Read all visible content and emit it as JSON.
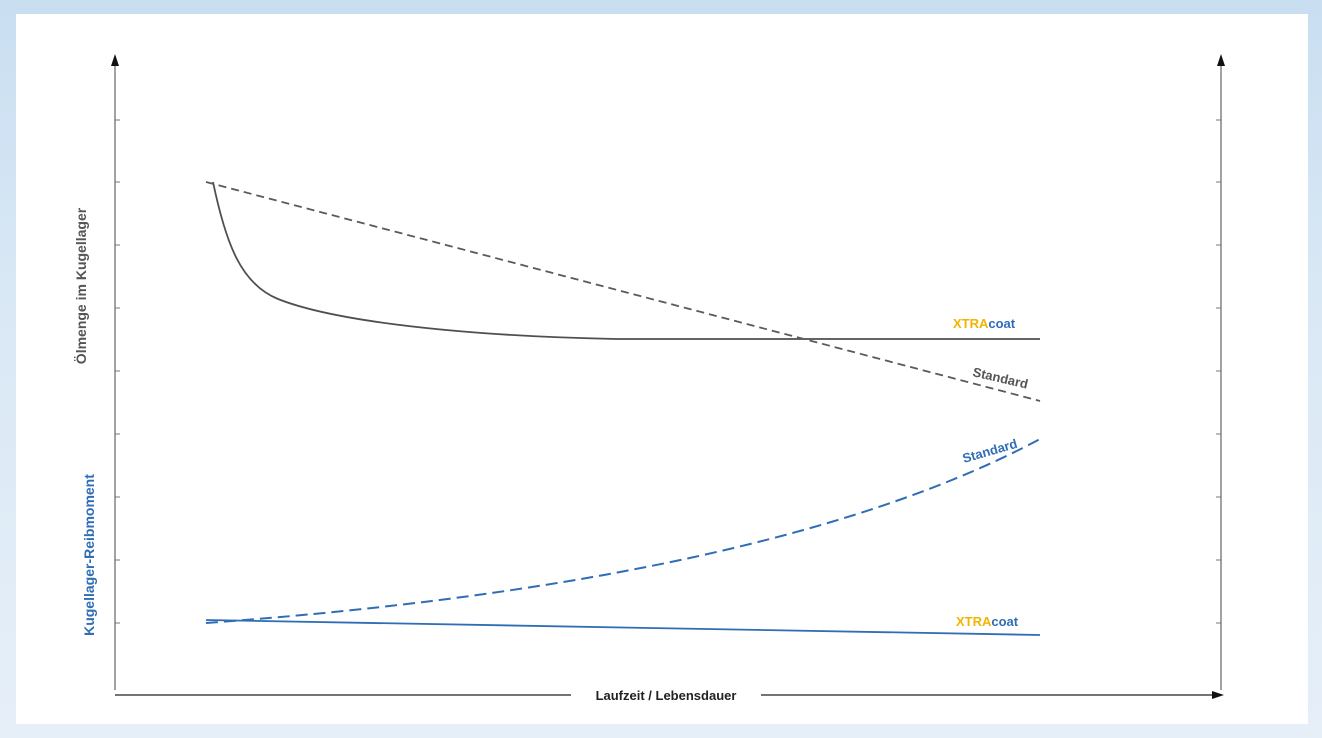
{
  "chart_data": {
    "type": "line",
    "xlabel": "Laufzeit / Lebensdauer",
    "ylabel_top": "Ölmenge im Kugellager",
    "ylabel_bottom": "Kugellager-Reibmoment",
    "colors": {
      "grey": "#555555",
      "blue": "#2f6db5",
      "brand_xtra": "#f2b400",
      "brand_coat": "#2f6db5"
    },
    "series": [
      {
        "label_part1": "XTRA",
        "label_part2": "coat",
        "group": "oil",
        "style": "solid",
        "color": "grey"
      },
      {
        "label": "Standard",
        "group": "oil",
        "style": "dashed",
        "color": "grey"
      },
      {
        "label": "Standard",
        "group": "friction",
        "style": "dashed",
        "color": "blue"
      },
      {
        "label_part1": "XTRA",
        "label_part2": "coat",
        "group": "friction",
        "style": "solid",
        "color": "blue"
      }
    ]
  }
}
